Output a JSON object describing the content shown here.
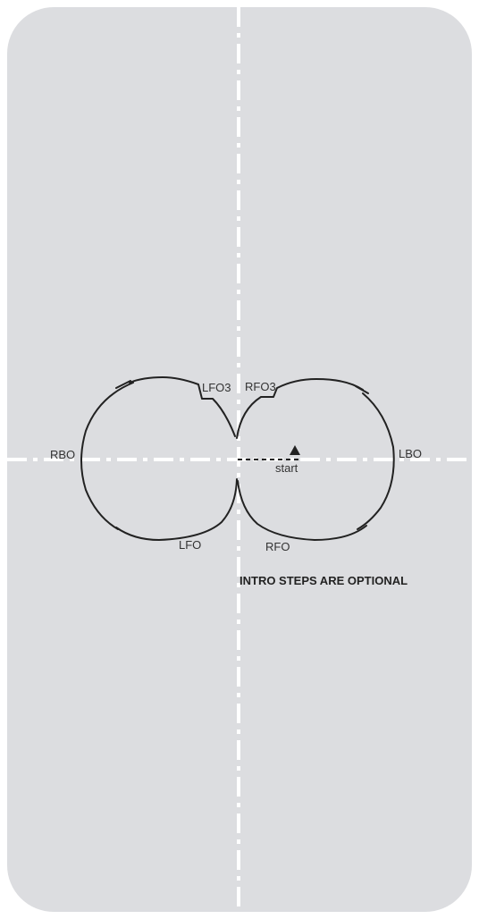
{
  "colors": {
    "rink_fill": "#dcdde0",
    "axis_line": "#ffffff",
    "trace": "#222222"
  },
  "labels": {
    "lfo3": "LFO3",
    "rfo3": "RFO3",
    "rbo": "RBO",
    "lbo": "LBO",
    "lfo": "LFO",
    "rfo": "RFO",
    "start": "start"
  },
  "note": "INTRO STEPS ARE OPTIONAL"
}
